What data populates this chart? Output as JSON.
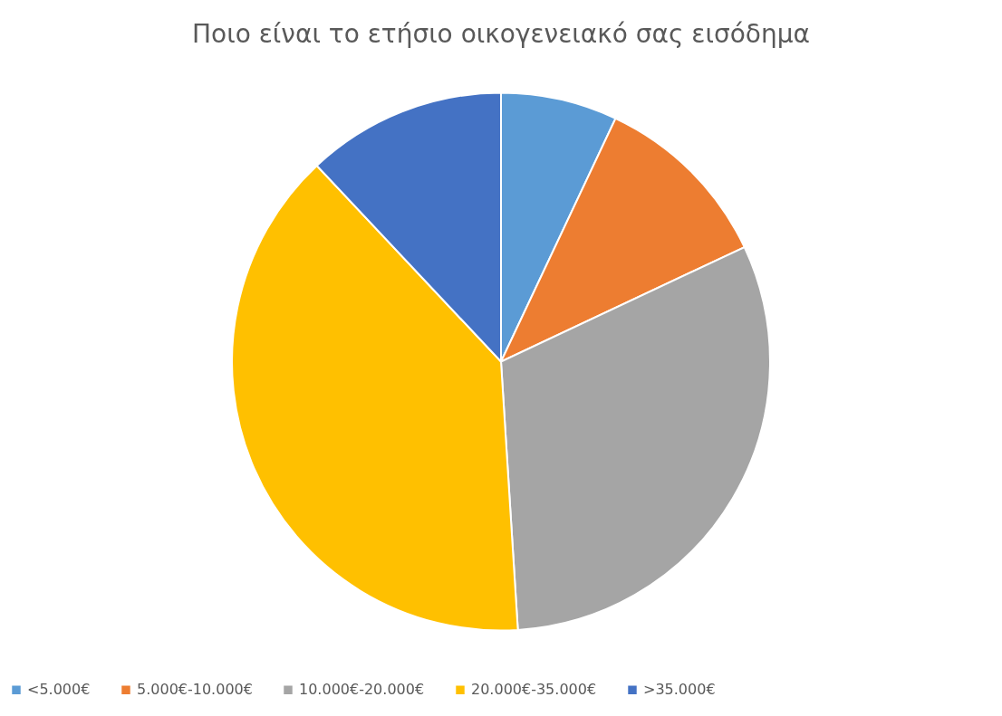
{
  "chart_data": {
    "type": "pie",
    "title": "Ποιο είναι το ετήσιο οικογενειακό σας εισόδημα",
    "categories": [
      "<5.000€",
      "5.000€-10.000€",
      "10.000€-20.000€",
      "20.000€-35.000€",
      ">35.000€"
    ],
    "values": [
      7,
      11,
      31,
      39,
      12
    ],
    "colors": [
      "#5b9bd5",
      "#ed7d31",
      "#a5a5a5",
      "#ffc000",
      "#4472c4"
    ],
    "legend": "bottom"
  }
}
